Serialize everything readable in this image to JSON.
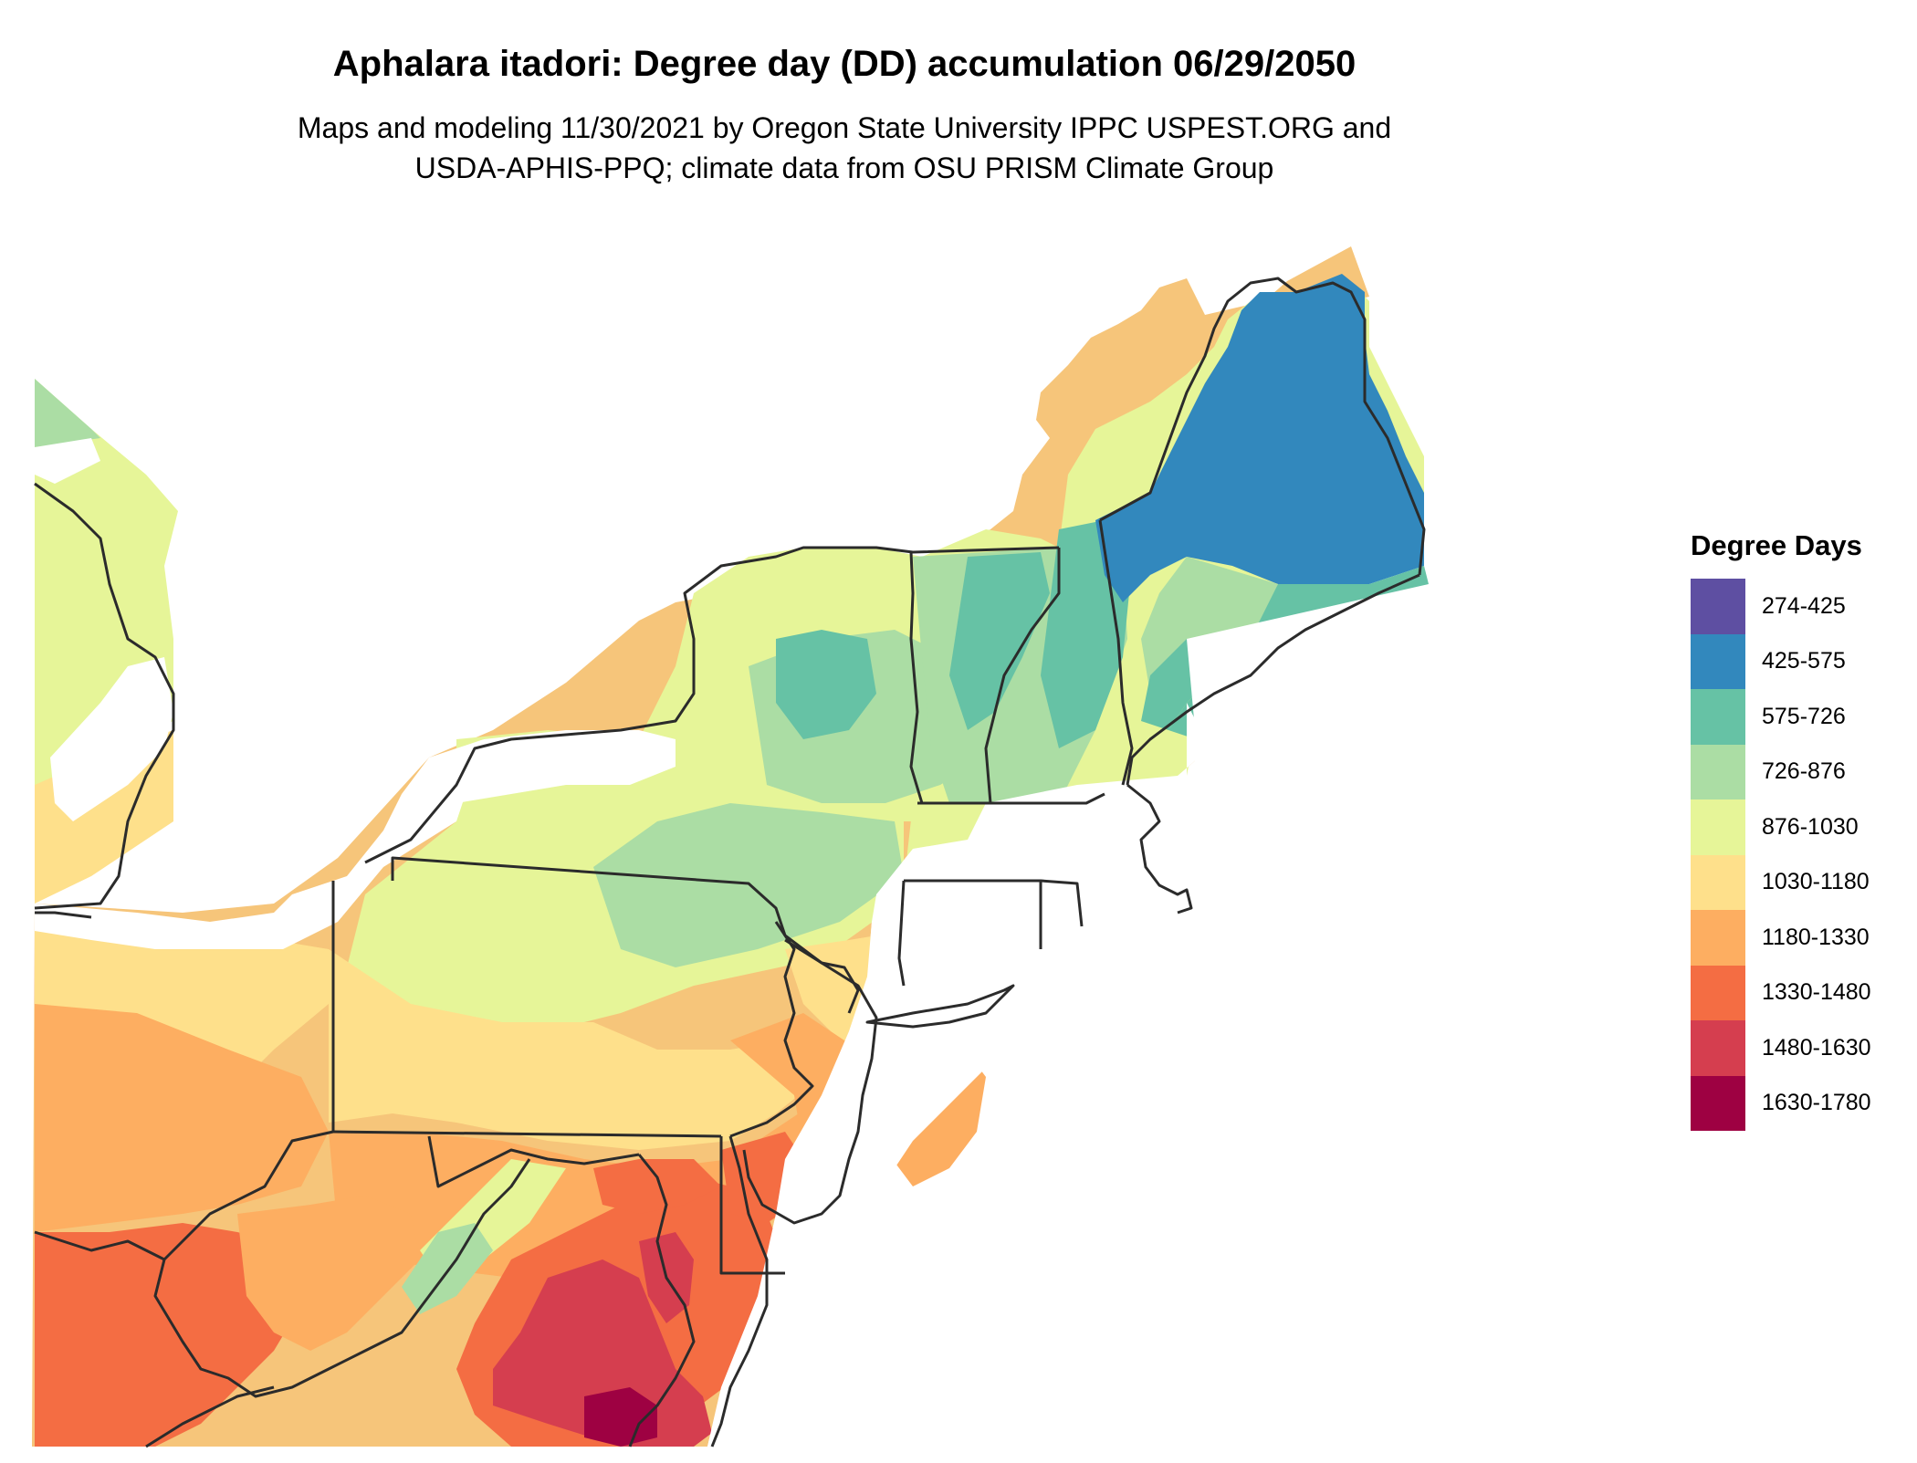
{
  "map": {
    "title": "Aphalara itadori: Degree day (DD) accumulation 06/29/2050",
    "subtitle_line1": "Maps and modeling 11/30/2021 by Oregon State University IPPC USPEST.ORG and",
    "subtitle_line2": "USDA-APHIS-PPQ; climate data from OSU PRISM Climate Group",
    "border_color": "#2b2b2b"
  },
  "legend": {
    "title": "Degree Days",
    "items": [
      {
        "label": "274-425",
        "color": "#5e4fa2"
      },
      {
        "label": "425-575",
        "color": "#3288bd"
      },
      {
        "label": "575-726",
        "color": "#66c2a5"
      },
      {
        "label": "726-876",
        "color": "#abdda4"
      },
      {
        "label": "876-1030",
        "color": "#e6f598"
      },
      {
        "label": "1030-1180",
        "color": "#fee08b"
      },
      {
        "label": "1180-1330",
        "color": "#fdae61"
      },
      {
        "label": "1330-1480",
        "color": "#f46d43"
      },
      {
        "label": "1480-1630",
        "color": "#d53e4f"
      },
      {
        "label": "1630-1780",
        "color": "#9e0142"
      }
    ]
  }
}
